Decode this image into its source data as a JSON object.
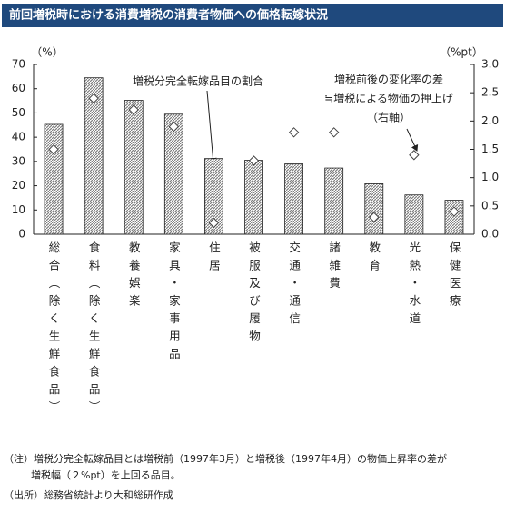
{
  "chart_data": {
    "type": "bar",
    "title": "前回増税時における消費増税の消費者物価への価格転嫁状況",
    "y_label": "（%）",
    "y2_label": "（%pt）",
    "categories": [
      "総合（除く生鮮食品）",
      "食料（除く生鮮食品）",
      "教養娯楽",
      "家具・家事用品",
      "住居",
      "被服及び履物",
      "交通・通信",
      "諸雑費",
      "教育",
      "光熱・水道",
      "保健医療"
    ],
    "series": [
      {
        "color": "#7f7f7f",
        "pattern": "hatch",
        "values": [
          45.3,
          64.5,
          55.2,
          49.5,
          31.2,
          30.5,
          29.0,
          27.3,
          20.8,
          16.2,
          14.0
        ]
      },
      {
        "color": "#444444",
        "marker": "diamond",
        "axis": "y2",
        "values": [
          1.5,
          2.4,
          2.2,
          1.9,
          0.2,
          1.3,
          1.8,
          1.8,
          0.3,
          1.4,
          0.4
        ]
      }
    ],
    "ylim": [
      0,
      70
    ],
    "yticks": [
      0,
      10,
      20,
      30,
      40,
      50,
      60,
      70
    ],
    "y2lim": [
      0,
      3
    ],
    "y2ticks": [
      {
        "value": 0,
        "label": "0.0"
      },
      {
        "value": 0.5,
        "label": "0.5"
      },
      {
        "value": 1,
        "label": "1.0"
      },
      {
        "value": 1.5,
        "label": "1.5"
      },
      {
        "value": 2,
        "label": "2.0"
      },
      {
        "value": 2.5,
        "label": "2.5"
      },
      {
        "value": 3,
        "label": "3.0"
      }
    ],
    "annotations": [
      {
        "lines": [
          "増税分完全転嫁品目の割合"
        ]
      },
      {
        "lines": [
          "増税前後の変化率の差",
          "≒増税による物価の押上げ",
          "（右軸）"
        ]
      }
    ],
    "notes": [
      "（注）増税分完全転嫁品目とは増税前（1997年3月）と増税後（1997年4月）の物価上昇率の差が",
      "増税幅（２%pt）を上回る品目。",
      "（出所）総務省統計より大和総研作成"
    ]
  }
}
